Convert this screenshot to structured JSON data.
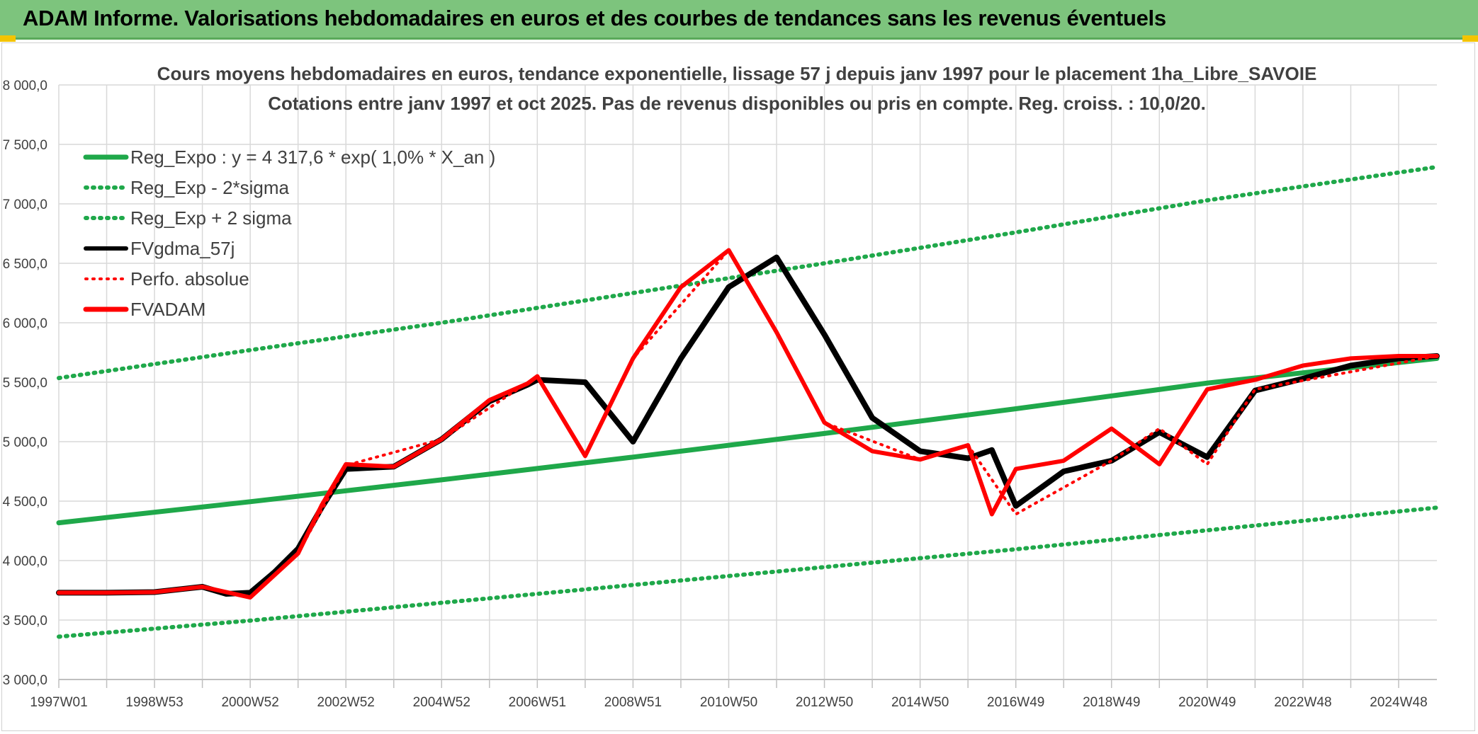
{
  "banner": {
    "title": "ADAM Informe. Valorisations hebdomadaires en euros et des courbes de tendances sans les revenus éventuels"
  },
  "chart_data": {
    "type": "line",
    "title_line1": "Cours moyens hebdomadaires en euros, tendance exponentielle, lissage 57 j depuis janv 1997 pour le placement 1ha_Libre_SAVOIE",
    "title_line2": "Cotations entre janv 1997 et oct 2025. Pas de revenus disponibles ou pris en compte. Reg. croiss. : 10,0/20.",
    "xlabel": "",
    "ylabel": "",
    "xlim": [
      1997.0,
      2025.8
    ],
    "ylim": [
      3000,
      8000
    ],
    "y_ticks": [
      3000,
      3500,
      4000,
      4500,
      5000,
      5500,
      6000,
      6500,
      7000,
      7500,
      8000
    ],
    "y_tick_labels": [
      "3 000,0",
      "3 500,0",
      "4 000,0",
      "4 500,0",
      "5 000,0",
      "5 500,0",
      "6 000,0",
      "6 500,0",
      "7 000,0",
      "7 500,0",
      "8 000,0"
    ],
    "x_ticks": [
      1997.0,
      1999.0,
      2001.0,
      2003.0,
      2005.0,
      2007.0,
      2009.0,
      2011.0,
      2013.0,
      2015.0,
      2017.0,
      2019.0,
      2021.0,
      2023.0,
      2025.0
    ],
    "x_tick_labels": [
      "1997W01",
      "1998W53",
      "2000W52",
      "2002W52",
      "2004W52",
      "2006W51",
      "2008W51",
      "2010W50",
      "2012W50",
      "2014W50",
      "2016W49",
      "2018W49",
      "2020W49",
      "2022W48",
      "2024W48"
    ],
    "grid": true,
    "legend_position": "top-left",
    "series": [
      {
        "name": "Reg_Expo : y = 4 317,6 * exp( 1,0% *  X_an )",
        "color": "#1fa84a",
        "style": "solid",
        "x": [
          1997.0,
          2001.0,
          2005.0,
          2009.0,
          2013.0,
          2017.0,
          2021.0,
          2025.8
        ],
        "values": [
          4318,
          4495,
          4679,
          4870,
          5069,
          5277,
          5493,
          5700
        ]
      },
      {
        "name": "Reg_Exp - 2*sigma",
        "color": "#1fa84a",
        "style": "dotted",
        "x": [
          1997.0,
          2001.0,
          2005.0,
          2009.0,
          2013.0,
          2017.0,
          2021.0,
          2025.8
        ],
        "values": [
          3360,
          3495,
          3645,
          3795,
          3945,
          4095,
          4255,
          4445
        ]
      },
      {
        "name": "Reg_Exp + 2 sigma",
        "color": "#1fa84a",
        "style": "dotted",
        "x": [
          1997.0,
          2001.0,
          2005.0,
          2009.0,
          2013.0,
          2017.0,
          2021.0,
          2025.8
        ],
        "values": [
          5535,
          5770,
          6000,
          6250,
          6500,
          6760,
          7030,
          7310
        ]
      },
      {
        "name": "FVgdma_57j",
        "color": "#000000",
        "style": "solid",
        "x": [
          1997.0,
          1998.0,
          1999.0,
          2000.0,
          2000.5,
          2001.0,
          2001.5,
          2002.0,
          2002.5,
          2003.0,
          2004.0,
          2005.0,
          2006.0,
          2006.8,
          2007.0,
          2008.0,
          2009.0,
          2010.0,
          2011.0,
          2012.0,
          2013.0,
          2014.0,
          2015.0,
          2016.0,
          2016.5,
          2017.0,
          2018.0,
          2019.0,
          2020.0,
          2021.0,
          2022.0,
          2023.0,
          2024.0,
          2025.0,
          2025.8
        ],
        "values": [
          3730,
          3730,
          3735,
          3780,
          3720,
          3730,
          3900,
          4100,
          4450,
          4770,
          4790,
          5020,
          5340,
          5480,
          5520,
          5500,
          5000,
          5700,
          6300,
          6550,
          5900,
          5200,
          4920,
          4860,
          4930,
          4460,
          4750,
          4840,
          5080,
          4870,
          5430,
          5530,
          5640,
          5700,
          5720
        ]
      },
      {
        "name": "Perfo. absolue",
        "color": "#ff0000",
        "style": "dotted",
        "x": [
          1997.0,
          1999.0,
          2000.0,
          2001.0,
          2002.0,
          2003.0,
          2005.0,
          2007.0,
          2008.0,
          2009.0,
          2011.0,
          2012.0,
          2013.0,
          2015.0,
          2016.0,
          2017.0,
          2019.0,
          2020.0,
          2021.0,
          2022.0,
          2025.8
        ],
        "values": [
          3730,
          3735,
          3780,
          3690,
          4060,
          4800,
          5020,
          5550,
          4880,
          5700,
          6610,
          5920,
          5160,
          4850,
          4970,
          4390,
          4840,
          5110,
          4810,
          5440,
          5720
        ]
      },
      {
        "name": "FVADAM",
        "color": "#ff0000",
        "style": "solid",
        "x": [
          1997.0,
          1998.0,
          1999.0,
          2000.0,
          2001.0,
          2002.0,
          2002.5,
          2003.0,
          2004.0,
          2005.0,
          2006.0,
          2006.8,
          2007.0,
          2008.0,
          2009.0,
          2010.0,
          2011.0,
          2012.0,
          2013.0,
          2014.0,
          2015.0,
          2016.0,
          2016.5,
          2017.0,
          2018.0,
          2019.0,
          2020.0,
          2021.0,
          2022.0,
          2023.0,
          2024.0,
          2025.0,
          2025.8
        ],
        "values": [
          3730,
          3730,
          3735,
          3780,
          3690,
          4060,
          4470,
          4810,
          4790,
          5020,
          5350,
          5490,
          5550,
          4880,
          5700,
          6300,
          6610,
          5920,
          5160,
          4920,
          4850,
          4970,
          4390,
          4770,
          4840,
          5110,
          4810,
          5440,
          5520,
          5640,
          5700,
          5720,
          5720
        ]
      }
    ]
  }
}
